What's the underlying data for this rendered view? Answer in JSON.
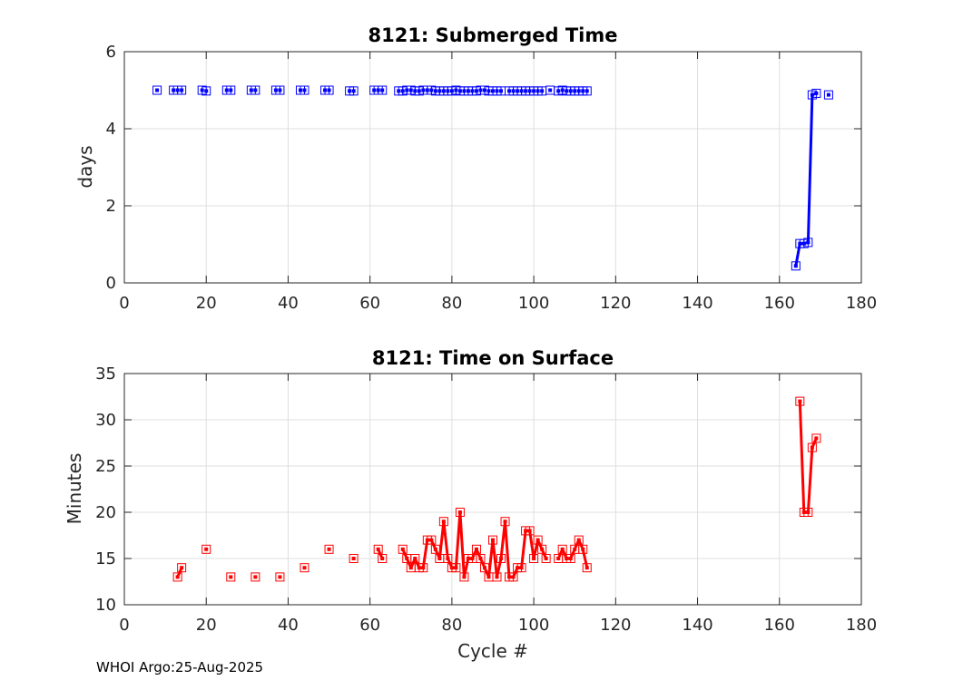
{
  "footer": "WHOI Argo:25-Aug-2025",
  "chart_data": [
    {
      "type": "line",
      "title": "8121: Submerged Time",
      "xlabel": "",
      "ylabel": "days",
      "xlim": [
        0,
        180
      ],
      "ylim": [
        0,
        6
      ],
      "xticks": [
        "0",
        "20",
        "40",
        "60",
        "80",
        "100",
        "120",
        "140",
        "160",
        "180"
      ],
      "yticks": [
        "0",
        "2",
        "4",
        "6"
      ],
      "grid": true,
      "color": "#0000ff",
      "series": [
        {
          "x": [
            8,
            12,
            13,
            14,
            19,
            20,
            25,
            26,
            31,
            32,
            37,
            38,
            43,
            44,
            49,
            50,
            55,
            56,
            61,
            62,
            63,
            67,
            68,
            69,
            70,
            71,
            72,
            73,
            74,
            75,
            76,
            77,
            78,
            79,
            80,
            81,
            82,
            83,
            84,
            85,
            86,
            87,
            88,
            89,
            90,
            91,
            92,
            94,
            95,
            96,
            97,
            98,
            99,
            100,
            101,
            102,
            104,
            106,
            107,
            108,
            109,
            110,
            111,
            112,
            113,
            164,
            165,
            166,
            167,
            168,
            169,
            172
          ],
          "y": [
            5.0,
            5.0,
            5.0,
            5.0,
            5.0,
            4.98,
            5.0,
            5.0,
            5.0,
            5.0,
            5.0,
            5.0,
            5.0,
            5.0,
            5.0,
            5.0,
            4.98,
            4.98,
            5.0,
            5.0,
            5.0,
            4.98,
            4.98,
            5.0,
            5.0,
            4.98,
            4.98,
            5.0,
            5.0,
            5.0,
            4.98,
            4.98,
            4.98,
            4.98,
            4.98,
            5.0,
            4.98,
            4.98,
            4.98,
            4.98,
            4.98,
            5.0,
            5.0,
            4.98,
            4.98,
            4.98,
            4.98,
            4.98,
            4.98,
            4.98,
            4.98,
            4.98,
            4.98,
            4.98,
            4.98,
            4.98,
            5.0,
            4.98,
            5.0,
            4.98,
            4.98,
            4.98,
            4.98,
            4.98,
            4.98,
            0.44,
            1.02,
            1.02,
            1.05,
            4.88,
            4.92,
            4.88
          ],
          "connected_x": [
            164,
            165,
            166,
            167,
            168,
            169
          ]
        }
      ]
    },
    {
      "type": "line",
      "title": "8121: Time on Surface",
      "xlabel": "Cycle #",
      "ylabel": "Minutes",
      "xlim": [
        0,
        180
      ],
      "ylim": [
        10,
        35
      ],
      "xticks": [
        "0",
        "20",
        "40",
        "60",
        "80",
        "100",
        "120",
        "140",
        "160",
        "180"
      ],
      "yticks": [
        "10",
        "15",
        "20",
        "25",
        "30",
        "35"
      ],
      "grid": true,
      "color": "#ff0000",
      "series": [
        {
          "x": [
            13,
            14,
            20,
            26,
            32,
            38,
            44,
            50,
            56,
            62,
            63,
            68,
            69,
            70,
            71,
            72,
            73,
            74,
            75,
            76,
            77,
            78,
            79,
            80,
            81,
            82,
            83,
            84,
            85,
            86,
            87,
            88,
            89,
            90,
            91,
            92,
            93,
            94,
            95,
            96,
            97,
            98,
            99,
            100,
            101,
            102,
            103,
            106,
            107,
            108,
            109,
            110,
            111,
            112,
            113,
            165,
            166,
            167,
            168,
            169
          ],
          "y": [
            13,
            14,
            16,
            13,
            13,
            13,
            14,
            16,
            15,
            16,
            15,
            16,
            15,
            14,
            15,
            14,
            14,
            17,
            17,
            16,
            15,
            19,
            15,
            14,
            14,
            20,
            13,
            15,
            15,
            16,
            15,
            14,
            13,
            17,
            13,
            15,
            19,
            13,
            13,
            14,
            14,
            18,
            18,
            15,
            17,
            16,
            15,
            15,
            16,
            15,
            15,
            16,
            17,
            16,
            14,
            32,
            20,
            20,
            27,
            28
          ],
          "connected_ranges": [
            [
              13,
              14
            ],
            [
              62,
              63
            ],
            [
              68,
              103
            ],
            [
              106,
              113
            ],
            [
              165,
              169
            ]
          ]
        }
      ]
    }
  ]
}
